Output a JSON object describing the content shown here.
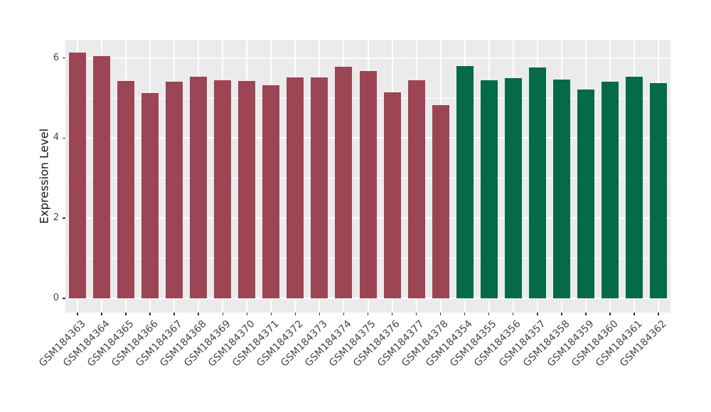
{
  "chart_data": {
    "type": "bar",
    "title": "",
    "ylabel": "Expression Level",
    "xlabel": "",
    "ylim": [
      0,
      6.45
    ],
    "yticks_major": [
      0,
      2,
      4,
      6
    ],
    "yticks_minor": [
      1,
      3,
      5
    ],
    "grid": "on",
    "legend_position": "none",
    "panel_bg_color": "#EBEBEB",
    "grid_color": "#FFFFFF",
    "tick_label_color": "#454545",
    "axis_title_color": "#111111",
    "group_colors": {
      "left_group": "#9C4554",
      "right_group": "#046A48"
    },
    "bars": [
      {
        "label": "GSM184363",
        "value": 6.13,
        "color": "#9C4554"
      },
      {
        "label": "GSM184364",
        "value": 6.04,
        "color": "#9C4554"
      },
      {
        "label": "GSM184365",
        "value": 5.43,
        "color": "#9C4554"
      },
      {
        "label": "GSM184366",
        "value": 5.13,
        "color": "#9C4554"
      },
      {
        "label": "GSM184367",
        "value": 5.41,
        "color": "#9C4554"
      },
      {
        "label": "GSM184368",
        "value": 5.54,
        "color": "#9C4554"
      },
      {
        "label": "GSM184369",
        "value": 5.45,
        "color": "#9C4554"
      },
      {
        "label": "GSM184370",
        "value": 5.43,
        "color": "#9C4554"
      },
      {
        "label": "GSM184371",
        "value": 5.32,
        "color": "#9C4554"
      },
      {
        "label": "GSM184372",
        "value": 5.51,
        "color": "#9C4554"
      },
      {
        "label": "GSM184373",
        "value": 5.51,
        "color": "#9C4554"
      },
      {
        "label": "GSM184374",
        "value": 5.78,
        "color": "#9C4554"
      },
      {
        "label": "GSM184375",
        "value": 5.67,
        "color": "#9C4554"
      },
      {
        "label": "GSM184376",
        "value": 5.14,
        "color": "#9C4554"
      },
      {
        "label": "GSM184377",
        "value": 5.44,
        "color": "#9C4554"
      },
      {
        "label": "GSM184378",
        "value": 4.82,
        "color": "#9C4554"
      },
      {
        "label": "GSM184354",
        "value": 5.79,
        "color": "#046A48"
      },
      {
        "label": "GSM184355",
        "value": 5.44,
        "color": "#046A48"
      },
      {
        "label": "GSM184356",
        "value": 5.49,
        "color": "#046A48"
      },
      {
        "label": "GSM184357",
        "value": 5.77,
        "color": "#046A48"
      },
      {
        "label": "GSM184358",
        "value": 5.46,
        "color": "#046A48"
      },
      {
        "label": "GSM184359",
        "value": 5.22,
        "color": "#046A48"
      },
      {
        "label": "GSM184360",
        "value": 5.4,
        "color": "#046A48"
      },
      {
        "label": "GSM184361",
        "value": 5.53,
        "color": "#046A48"
      },
      {
        "label": "GSM184362",
        "value": 5.37,
        "color": "#046A48"
      }
    ]
  }
}
